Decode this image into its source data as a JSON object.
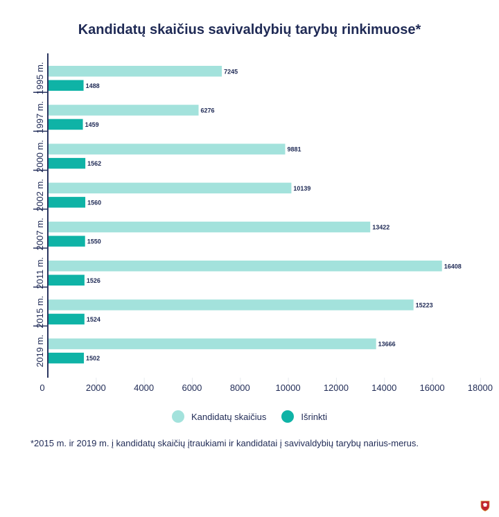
{
  "chart_data": {
    "type": "bar",
    "orientation": "horizontal",
    "title": "Kandidatų skaičius savivaldybių tarybų rinkimuose*",
    "categories": [
      "1995 m.",
      "1997 m.",
      "2000 m.",
      "2002 m.",
      "2007 m.",
      "2011 m.",
      "2015 m.",
      "2019 m."
    ],
    "series": [
      {
        "name": "Kandidatų skaičius",
        "color": "#a3e2dc",
        "values": [
          7245,
          6276,
          9881,
          10139,
          13422,
          16408,
          15223,
          13666
        ]
      },
      {
        "name": "Išrinkti",
        "color": "#0fb3a6",
        "values": [
          1488,
          1459,
          1562,
          1560,
          1550,
          1526,
          1524,
          1502
        ]
      }
    ],
    "x_ticks": [
      0,
      2000,
      4000,
      6000,
      8000,
      10000,
      12000,
      14000,
      16000,
      18000
    ],
    "xlim": [
      0,
      18000
    ],
    "grid": false,
    "data_labels": true,
    "legend_position": "bottom-center"
  },
  "footnote": "*2015 m. ir 2019 m. į kandidatų skaičių įtraukiami ir kandidatai į savivaldybių tarybų narius-merus.",
  "logo_icon": "coat-of-arms-icon",
  "colors": {
    "text": "#1f2a55",
    "axis": "#2a3560",
    "guide": "#e6eaee"
  }
}
